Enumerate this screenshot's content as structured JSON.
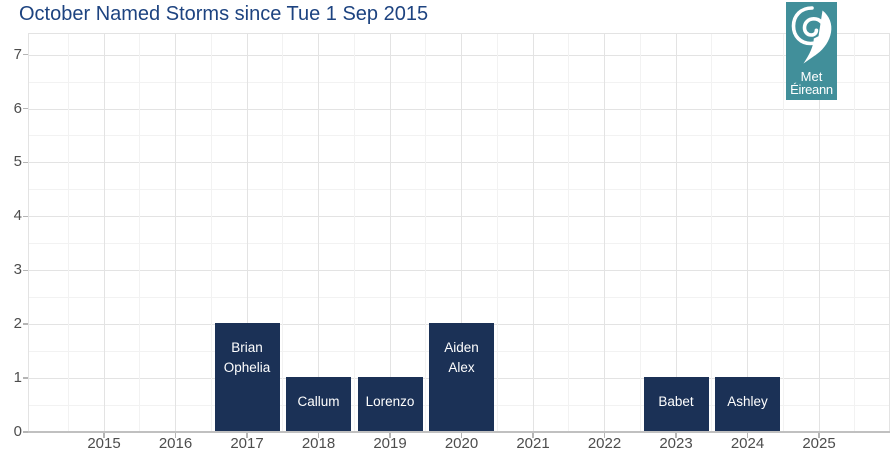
{
  "header": {
    "title": "October Named Storms since Tue 1 Sep 2015"
  },
  "logo": {
    "name": "Met Éireann",
    "line1": "Met",
    "line2": "Éireann",
    "background": "#418F9A",
    "icon": "storm-swirl-icon"
  },
  "chart_data": {
    "type": "bar",
    "title": "October Named Storms since Tue 1 Sep 2015",
    "categories": [
      "2015",
      "2016",
      "2017",
      "2018",
      "2019",
      "2020",
      "2021",
      "2022",
      "2023",
      "2024",
      "2025"
    ],
    "values": [
      0,
      0,
      2,
      1,
      1,
      2,
      0,
      0,
      1,
      1,
      0
    ],
    "bar_labels": [
      [],
      [],
      [
        "Brian",
        "Ophelia"
      ],
      [
        "Callum"
      ],
      [
        "Lorenzo"
      ],
      [
        "Aiden",
        "Alex"
      ],
      [],
      [],
      [
        "Babet"
      ],
      [
        "Ashley"
      ],
      []
    ],
    "xlabel": "",
    "ylabel": "",
    "ylim": [
      0,
      7.4
    ],
    "yticks": [
      "0",
      "1",
      "2",
      "3",
      "4",
      "5",
      "6",
      "7"
    ],
    "grid": "major and minor, light gray, on white panel",
    "legend": "none",
    "bar_color": "#1B3156",
    "bar_label_color": "#FFFFFF"
  },
  "colors": {
    "title_text": "#1D4380",
    "axis_text": "#4D4D4D",
    "grid_major": "#E3E3E3",
    "grid_minor": "#F2F2F2",
    "panel_border": "#E3E3E3",
    "axis_line": "#C0C0C0",
    "tick": "#B5B5B5",
    "logo_teal": "#418F9A",
    "background": "#FFFFFF"
  }
}
